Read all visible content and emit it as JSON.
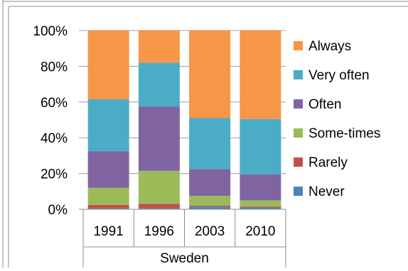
{
  "chart_data": {
    "type": "bar",
    "stacked": true,
    "normalized": true,
    "categories": [
      "1991",
      "1996",
      "2003",
      "2010"
    ],
    "group_label": "Sweden",
    "ylim": [
      0,
      100
    ],
    "yticks": [
      "0%",
      "20%",
      "40%",
      "60%",
      "80%",
      "100%"
    ],
    "legend_position": "right",
    "grid": true,
    "series": [
      {
        "name": "Never",
        "color": "#4F81BD",
        "values": [
          0.5,
          0.5,
          1.5,
          1.0
        ]
      },
      {
        "name": "Rarely",
        "color": "#C0504D",
        "values": [
          2.0,
          2.5,
          0.5,
          0.5
        ]
      },
      {
        "name": "Some-times",
        "color": "#9BBB59",
        "values": [
          9.5,
          18.5,
          5.5,
          3.5
        ]
      },
      {
        "name": "Often",
        "color": "#8064A2",
        "values": [
          20.5,
          36.0,
          15.0,
          14.5
        ]
      },
      {
        "name": "Very often",
        "color": "#4BACC6",
        "values": [
          29.0,
          24.5,
          28.5,
          31.0
        ]
      },
      {
        "name": "Always",
        "color": "#F79646",
        "values": [
          38.5,
          18.0,
          49.0,
          49.5
        ]
      }
    ]
  }
}
